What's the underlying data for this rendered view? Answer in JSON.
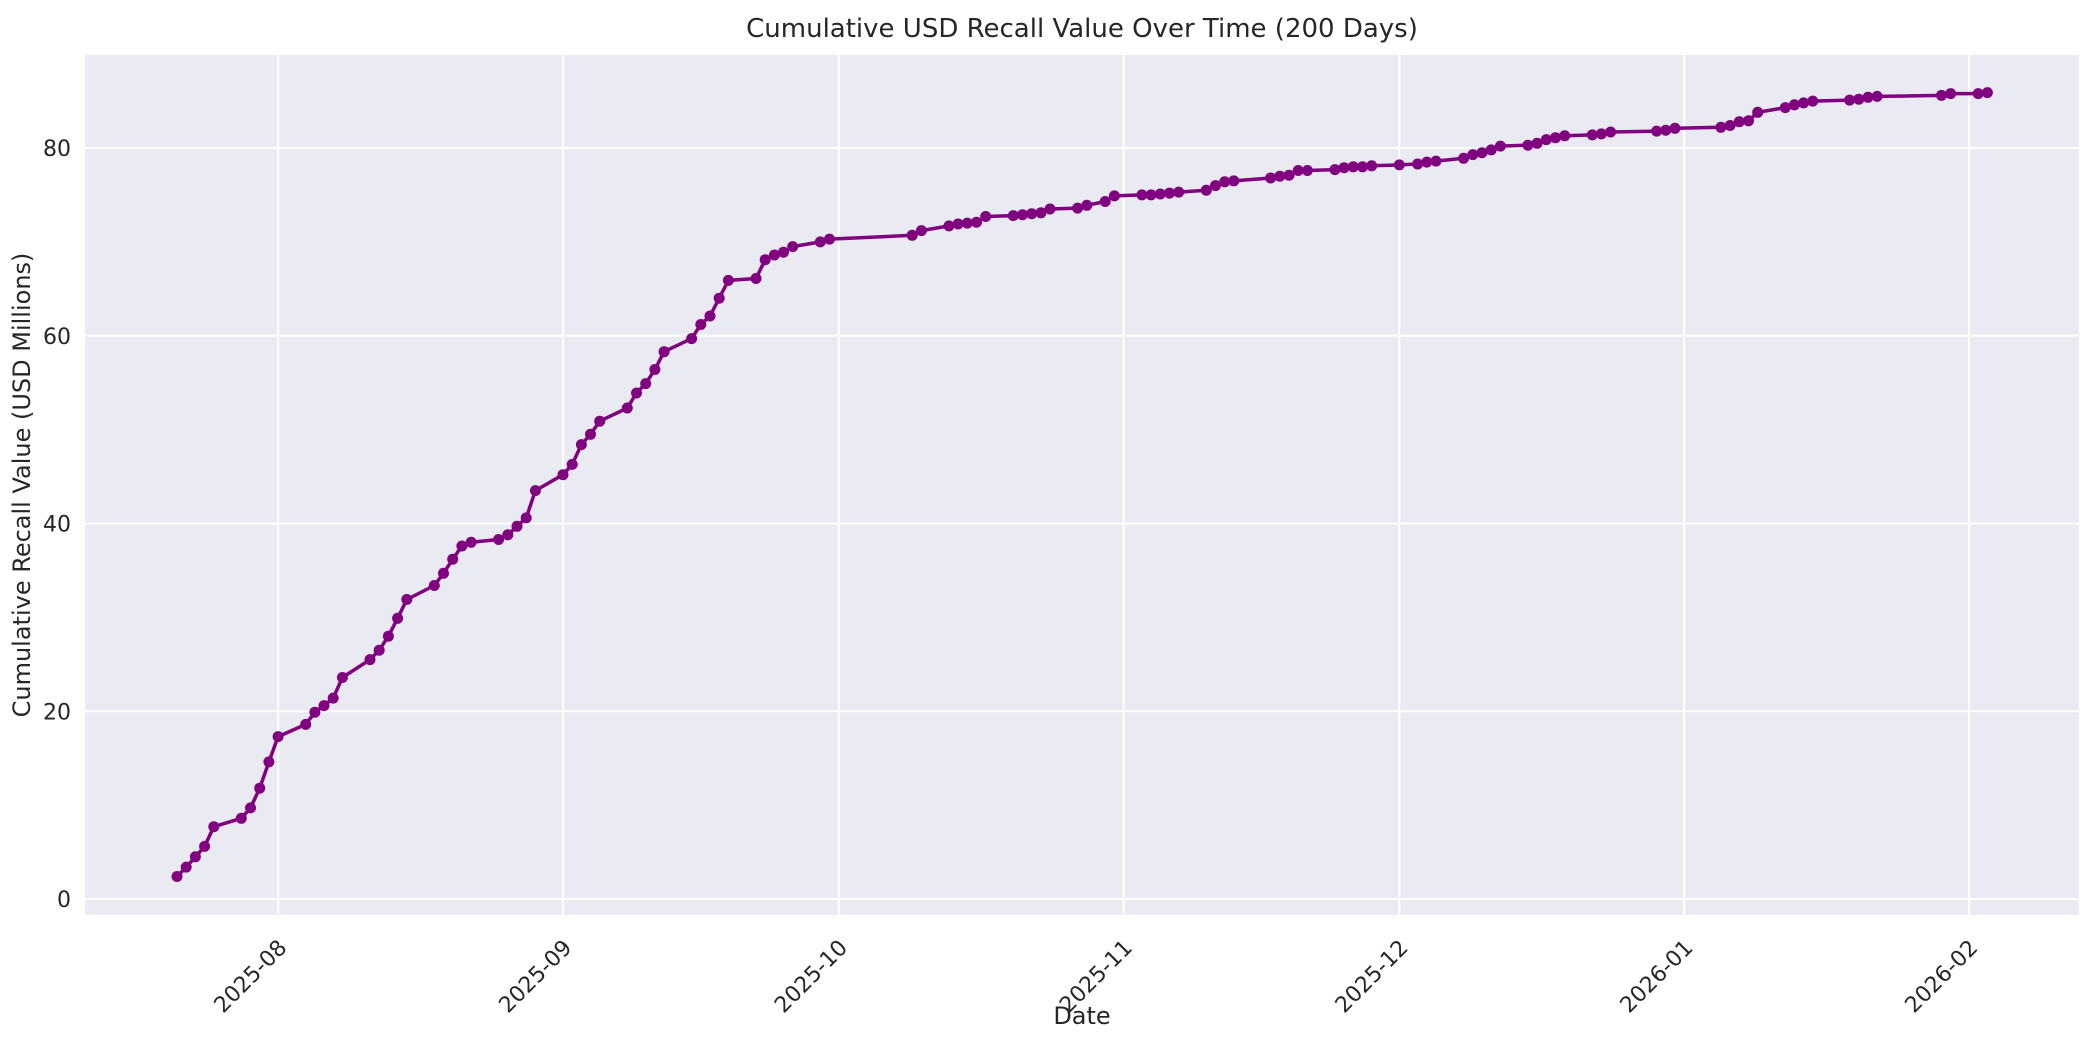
{
  "title": "Cumulative USD Recall Value Over Time (200 Days)",
  "colors": {
    "line": "#800080",
    "marker": "#800080",
    "axes_background": "#eaeaf2",
    "grid": "#ffffff",
    "text": "#262626",
    "figure_background": "#ffffff"
  },
  "chart_data": {
    "type": "line",
    "title": "Cumulative USD Recall Value Over Time (200 Days)",
    "xlabel": "Date",
    "ylabel": "Cumulative Recall Value (USD Millions)",
    "legend": "none",
    "grid": true,
    "marker": "circle",
    "ylim": [
      -1.8,
      90
    ],
    "y_ticks": [
      0,
      20,
      40,
      60,
      80
    ],
    "x_ticks": [
      {
        "date": "2025-08-01",
        "label": "2025-08"
      },
      {
        "date": "2025-09-01",
        "label": "2025-09"
      },
      {
        "date": "2025-10-01",
        "label": "2025-10"
      },
      {
        "date": "2025-11-01",
        "label": "2025-11"
      },
      {
        "date": "2025-12-01",
        "label": "2025-12"
      },
      {
        "date": "2026-01-01",
        "label": "2026-01"
      },
      {
        "date": "2026-02-01",
        "label": "2026-02"
      }
    ],
    "series": [
      {
        "name": "Cumulative Recall Value",
        "points": [
          [
            "2025-07-21",
            2.4
          ],
          [
            "2025-07-22",
            3.4
          ],
          [
            "2025-07-23",
            4.5
          ],
          [
            "2025-07-24",
            5.6
          ],
          [
            "2025-07-25",
            7.7
          ],
          [
            "2025-07-28",
            8.6
          ],
          [
            "2025-07-29",
            9.7
          ],
          [
            "2025-07-30",
            11.8
          ],
          [
            "2025-07-31",
            14.6
          ],
          [
            "2025-08-01",
            17.3
          ],
          [
            "2025-08-04",
            18.6
          ],
          [
            "2025-08-05",
            19.9
          ],
          [
            "2025-08-06",
            20.6
          ],
          [
            "2025-08-07",
            21.4
          ],
          [
            "2025-08-08",
            23.6
          ],
          [
            "2025-08-11",
            25.5
          ],
          [
            "2025-08-12",
            26.5
          ],
          [
            "2025-08-13",
            28.0
          ],
          [
            "2025-08-14",
            29.9
          ],
          [
            "2025-08-15",
            31.9
          ],
          [
            "2025-08-18",
            33.4
          ],
          [
            "2025-08-19",
            34.7
          ],
          [
            "2025-08-20",
            36.2
          ],
          [
            "2025-08-21",
            37.6
          ],
          [
            "2025-08-22",
            38.0
          ],
          [
            "2025-08-25",
            38.3
          ],
          [
            "2025-08-26",
            38.8
          ],
          [
            "2025-08-27",
            39.7
          ],
          [
            "2025-08-28",
            40.6
          ],
          [
            "2025-08-29",
            43.5
          ],
          [
            "2025-09-01",
            45.2
          ],
          [
            "2025-09-02",
            46.3
          ],
          [
            "2025-09-03",
            48.4
          ],
          [
            "2025-09-04",
            49.5
          ],
          [
            "2025-09-05",
            50.9
          ],
          [
            "2025-09-08",
            52.3
          ],
          [
            "2025-09-09",
            53.9
          ],
          [
            "2025-09-10",
            54.9
          ],
          [
            "2025-09-11",
            56.4
          ],
          [
            "2025-09-12",
            58.3
          ],
          [
            "2025-09-15",
            59.7
          ],
          [
            "2025-09-16",
            61.2
          ],
          [
            "2025-09-17",
            62.1
          ],
          [
            "2025-09-18",
            64.0
          ],
          [
            "2025-09-19",
            65.9
          ],
          [
            "2025-09-22",
            66.1
          ],
          [
            "2025-09-23",
            68.1
          ],
          [
            "2025-09-24",
            68.6
          ],
          [
            "2025-09-25",
            68.9
          ],
          [
            "2025-09-26",
            69.5
          ],
          [
            "2025-09-29",
            70.0
          ],
          [
            "2025-09-30",
            70.3
          ],
          [
            "2025-10-09",
            70.7
          ],
          [
            "2025-10-10",
            71.2
          ],
          [
            "2025-10-13",
            71.7
          ],
          [
            "2025-10-14",
            71.9
          ],
          [
            "2025-10-15",
            72.0
          ],
          [
            "2025-10-16",
            72.1
          ],
          [
            "2025-10-17",
            72.7
          ],
          [
            "2025-10-20",
            72.8
          ],
          [
            "2025-10-21",
            72.9
          ],
          [
            "2025-10-22",
            73.0
          ],
          [
            "2025-10-23",
            73.1
          ],
          [
            "2025-10-24",
            73.5
          ],
          [
            "2025-10-27",
            73.6
          ],
          [
            "2025-10-28",
            73.9
          ],
          [
            "2025-10-30",
            74.3
          ],
          [
            "2025-10-31",
            74.9
          ],
          [
            "2025-11-03",
            75.0
          ],
          [
            "2025-11-04",
            75.0
          ],
          [
            "2025-11-05",
            75.1
          ],
          [
            "2025-11-06",
            75.2
          ],
          [
            "2025-11-07",
            75.3
          ],
          [
            "2025-11-10",
            75.5
          ],
          [
            "2025-11-11",
            76.0
          ],
          [
            "2025-11-12",
            76.4
          ],
          [
            "2025-11-13",
            76.5
          ],
          [
            "2025-11-17",
            76.8
          ],
          [
            "2025-11-18",
            77.0
          ],
          [
            "2025-11-19",
            77.1
          ],
          [
            "2025-11-20",
            77.6
          ],
          [
            "2025-11-21",
            77.6
          ],
          [
            "2025-11-24",
            77.7
          ],
          [
            "2025-11-25",
            77.9
          ],
          [
            "2025-11-26",
            78.0
          ],
          [
            "2025-11-27",
            78.0
          ],
          [
            "2025-11-28",
            78.1
          ],
          [
            "2025-12-01",
            78.2
          ],
          [
            "2025-12-03",
            78.3
          ],
          [
            "2025-12-04",
            78.5
          ],
          [
            "2025-12-05",
            78.6
          ],
          [
            "2025-12-08",
            78.9
          ],
          [
            "2025-12-09",
            79.3
          ],
          [
            "2025-12-10",
            79.5
          ],
          [
            "2025-12-11",
            79.8
          ],
          [
            "2025-12-12",
            80.2
          ],
          [
            "2025-12-15",
            80.3
          ],
          [
            "2025-12-16",
            80.5
          ],
          [
            "2025-12-17",
            80.9
          ],
          [
            "2025-12-18",
            81.1
          ],
          [
            "2025-12-19",
            81.3
          ],
          [
            "2025-12-22",
            81.4
          ],
          [
            "2025-12-23",
            81.5
          ],
          [
            "2025-12-24",
            81.7
          ],
          [
            "2025-12-29",
            81.8
          ],
          [
            "2025-12-30",
            81.9
          ],
          [
            "2025-12-31",
            82.1
          ],
          [
            "2026-01-05",
            82.2
          ],
          [
            "2026-01-06",
            82.4
          ],
          [
            "2026-01-07",
            82.8
          ],
          [
            "2026-01-08",
            82.9
          ],
          [
            "2026-01-09",
            83.8
          ],
          [
            "2026-01-12",
            84.3
          ],
          [
            "2026-01-13",
            84.6
          ],
          [
            "2026-01-14",
            84.8
          ],
          [
            "2026-01-15",
            85.0
          ],
          [
            "2026-01-19",
            85.1
          ],
          [
            "2026-01-20",
            85.2
          ],
          [
            "2026-01-21",
            85.4
          ],
          [
            "2026-01-22",
            85.5
          ],
          [
            "2026-01-29",
            85.6
          ],
          [
            "2026-01-30",
            85.8
          ],
          [
            "2026-02-02",
            85.8
          ],
          [
            "2026-02-03",
            85.9
          ]
        ]
      }
    ]
  }
}
